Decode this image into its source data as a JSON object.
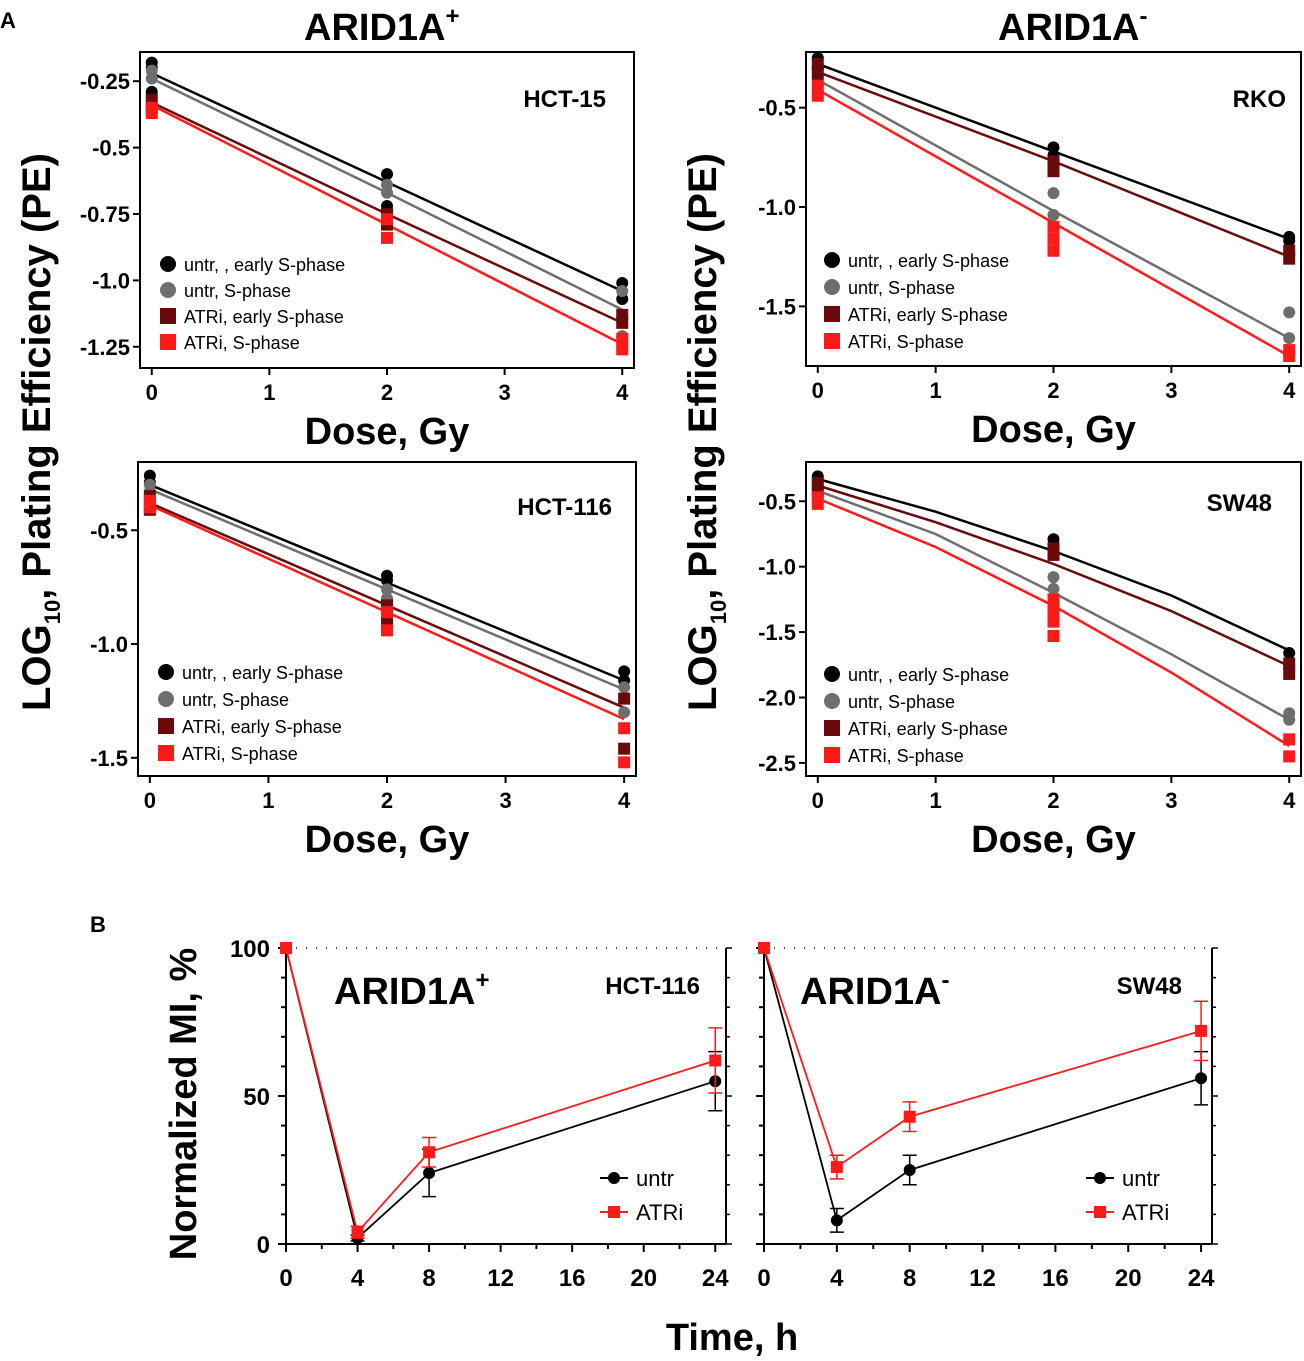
{
  "panel_labels": {
    "a": "A",
    "b": "B"
  },
  "headers": {
    "left": {
      "main": "ARID1A",
      "sup": "+"
    },
    "right": {
      "main": "ARID1A",
      "sup": "-"
    }
  },
  "shared": {
    "ylabel_pre": "LOG",
    "ylabel_sub": "10",
    "ylabel_post": ", Plating Efficiency (PE)",
    "b_ylabel": "Normalized MI, %",
    "b_xlabel": "Time, h"
  },
  "colors": {
    "untr_early": "#000000",
    "untr_s": "#6e6e6e",
    "atri_early": "#6b0a0a",
    "atri_s": "#ff1a1a",
    "ctrl_line": "#000000",
    "atri_line": "#ff1a1a"
  },
  "chart_data": [
    {
      "id": "hct15",
      "type": "scatter",
      "title": "HCT-15",
      "xlabel": "Dose, Gy",
      "ylabel": "LOG10, Plating Efficiency (PE)",
      "xlim": [
        -0.1,
        4.1
      ],
      "ylim": [
        -1.33,
        -0.14
      ],
      "xticks": [
        "0",
        "1",
        "2",
        "3",
        "4"
      ],
      "yticks": [
        {
          "v": -0.25,
          "t": "-0.25"
        },
        {
          "v": -0.5,
          "t": "-0.5"
        },
        {
          "v": -0.75,
          "t": "-0.75"
        },
        {
          "v": -1.0,
          "t": "-1.0"
        },
        {
          "v": -1.25,
          "t": "-1.25"
        }
      ],
      "series": [
        {
          "name": "untr, , early S-phase",
          "marker": "circle",
          "color": "#000000",
          "fit": [
            [
              0,
              -0.22
            ],
            [
              2,
              -0.63
            ],
            [
              4,
              -1.04
            ]
          ],
          "points": [
            [
              0,
              -0.18
            ],
            [
              0,
              -0.2
            ],
            [
              0,
              -0.29
            ],
            [
              2,
              -0.6
            ],
            [
              2,
              -0.72
            ],
            [
              4,
              -1.01
            ],
            [
              4,
              -1.07
            ]
          ]
        },
        {
          "name": "untr, S-phase",
          "marker": "circle",
          "color": "#6e6e6e",
          "fit": [
            [
              0,
              -0.24
            ],
            [
              2,
              -0.67
            ],
            [
              4,
              -1.11
            ]
          ],
          "points": [
            [
              0,
              -0.21
            ],
            [
              0,
              -0.24
            ],
            [
              2,
              -0.64
            ],
            [
              2,
              -0.67
            ],
            [
              4,
              -1.04
            ],
            [
              4,
              -1.21
            ]
          ]
        },
        {
          "name": "ATRi, early S-phase",
          "marker": "square",
          "color": "#6b0a0a",
          "fit": [
            [
              0,
              -0.33
            ],
            [
              2,
              -0.75
            ],
            [
              4,
              -1.16
            ]
          ],
          "points": [
            [
              0,
              -0.32
            ],
            [
              0,
              -0.35
            ],
            [
              2,
              -0.75
            ],
            [
              2,
              -0.79
            ],
            [
              4,
              -1.13
            ],
            [
              4,
              -1.16
            ]
          ]
        },
        {
          "name": "ATRi, S-phase",
          "marker": "square",
          "color": "#ff1a1a",
          "fit": [
            [
              0,
              -0.34
            ],
            [
              2,
              -0.79
            ],
            [
              4,
              -1.24
            ]
          ],
          "points": [
            [
              0,
              -0.35
            ],
            [
              0,
              -0.37
            ],
            [
              2,
              -0.77
            ],
            [
              2,
              -0.84
            ],
            [
              4,
              -1.22
            ],
            [
              4,
              -1.26
            ]
          ]
        }
      ]
    },
    {
      "id": "rko",
      "type": "scatter",
      "title": "RKO",
      "xlabel": "Dose, Gy",
      "ylabel": "LOG10, Plating Efficiency (PE)",
      "xlim": [
        -0.1,
        4.1
      ],
      "ylim": [
        -1.8,
        -0.22
      ],
      "xticks": [
        "0",
        "1",
        "2",
        "3",
        "4"
      ],
      "yticks": [
        {
          "v": -0.5,
          "t": "-0.5"
        },
        {
          "v": -1.0,
          "t": "-1.0"
        },
        {
          "v": -1.5,
          "t": "-1.5"
        }
      ],
      "series": [
        {
          "name": "untr, , early S-phase",
          "marker": "circle",
          "color": "#000000",
          "fit": [
            [
              0,
              -0.28
            ],
            [
              2,
              -0.72
            ],
            [
              4,
              -1.16
            ]
          ],
          "points": [
            [
              0,
              -0.25
            ],
            [
              0,
              -0.3
            ],
            [
              2,
              -0.7
            ],
            [
              2,
              -0.74
            ],
            [
              4,
              -1.15
            ],
            [
              4,
              -1.17
            ]
          ]
        },
        {
          "name": "untr, S-phase",
          "marker": "circle",
          "color": "#6e6e6e",
          "fit": [
            [
              0,
              -0.36
            ],
            [
              2,
              -1.02
            ],
            [
              4,
              -1.66
            ]
          ],
          "points": [
            [
              0,
              -0.38
            ],
            [
              2,
              -0.93
            ],
            [
              2,
              -1.04
            ],
            [
              4,
              -1.53
            ],
            [
              4,
              -1.66
            ]
          ]
        },
        {
          "name": "ATRi, early S-phase",
          "marker": "square",
          "color": "#6b0a0a",
          "fit": [
            [
              0,
              -0.32
            ],
            [
              2,
              -0.77
            ],
            [
              4,
              -1.25
            ]
          ],
          "points": [
            [
              0,
              -0.28
            ],
            [
              0,
              -0.33
            ],
            [
              2,
              -0.77
            ],
            [
              2,
              -0.82
            ],
            [
              4,
              -1.22
            ],
            [
              4,
              -1.26
            ]
          ]
        },
        {
          "name": "ATRi, S-phase",
          "marker": "square",
          "color": "#ff1a1a",
          "fit": [
            [
              0,
              -0.41
            ],
            [
              2,
              -1.08
            ],
            [
              4,
              -1.75
            ]
          ],
          "points": [
            [
              0,
              -0.39
            ],
            [
              0,
              -0.44
            ],
            [
              2,
              -1.1
            ],
            [
              2,
              -1.16
            ],
            [
              2,
              -1.22
            ],
            [
              4,
              -1.72
            ],
            [
              4,
              -1.75
            ]
          ]
        }
      ]
    },
    {
      "id": "hct116",
      "type": "scatter",
      "title": "HCT-116",
      "xlabel": "Dose, Gy",
      "ylabel": "LOG10, Plating Efficiency (PE)",
      "xlim": [
        -0.1,
        4.1
      ],
      "ylim": [
        -1.58,
        -0.2
      ],
      "xticks": [
        "0",
        "1",
        "2",
        "3",
        "4"
      ],
      "yticks": [
        {
          "v": -0.5,
          "t": "-0.5"
        },
        {
          "v": -1.0,
          "t": "-1.0"
        },
        {
          "v": -1.5,
          "t": "-1.5"
        }
      ],
      "series": [
        {
          "name": "untr, , early S-phase",
          "marker": "circle",
          "color": "#000000",
          "fit": [
            [
              0,
              -0.3
            ],
            [
              2,
              -0.73
            ],
            [
              4,
              -1.16
            ]
          ],
          "points": [
            [
              0,
              -0.26
            ],
            [
              0,
              -0.29
            ],
            [
              2,
              -0.7
            ],
            [
              2,
              -0.72
            ],
            [
              4,
              -1.12
            ],
            [
              4,
              -1.16
            ]
          ]
        },
        {
          "name": "untr, S-phase",
          "marker": "circle",
          "color": "#6e6e6e",
          "fit": [
            [
              0,
              -0.32
            ],
            [
              2,
              -0.76
            ],
            [
              4,
              -1.2
            ]
          ],
          "points": [
            [
              0,
              -0.3
            ],
            [
              0,
              -0.33
            ],
            [
              2,
              -0.76
            ],
            [
              2,
              -0.8
            ],
            [
              4,
              -1.19
            ],
            [
              4,
              -1.3
            ]
          ]
        },
        {
          "name": "ATRi, early S-phase",
          "marker": "square",
          "color": "#6b0a0a",
          "fit": [
            [
              0,
              -0.38
            ],
            [
              2,
              -0.83
            ],
            [
              4,
              -1.28
            ]
          ],
          "points": [
            [
              0,
              -0.35
            ],
            [
              0,
              -0.41
            ],
            [
              2,
              -0.83
            ],
            [
              2,
              -0.91
            ],
            [
              4,
              -1.24
            ],
            [
              4,
              -1.46
            ]
          ]
        },
        {
          "name": "ATRi, S-phase",
          "marker": "square",
          "color": "#ff1a1a",
          "fit": [
            [
              0,
              -0.39
            ],
            [
              2,
              -0.86
            ],
            [
              4,
              -1.33
            ]
          ],
          "points": [
            [
              0,
              -0.37
            ],
            [
              0,
              -0.4
            ],
            [
              2,
              -0.86
            ],
            [
              2,
              -0.94
            ],
            [
              4,
              -1.37
            ],
            [
              4,
              -1.52
            ]
          ]
        }
      ]
    },
    {
      "id": "sw48",
      "type": "scatter",
      "title": "SW48",
      "xlabel": "Dose, Gy",
      "ylabel": "LOG10, Plating Efficiency (PE)",
      "xlim": [
        -0.1,
        4.1
      ],
      "ylim": [
        -2.6,
        -0.2
      ],
      "xticks": [
        "0",
        "1",
        "2",
        "3",
        "4"
      ],
      "yticks": [
        {
          "v": -0.5,
          "t": "-0.5"
        },
        {
          "v": -1.0,
          "t": "-1.0"
        },
        {
          "v": -1.5,
          "t": "-1.5"
        },
        {
          "v": -2.0,
          "t": "-2.0"
        },
        {
          "v": -2.5,
          "t": "-2.5"
        }
      ],
      "series": [
        {
          "name": "untr, , early S-phase",
          "marker": "circle",
          "color": "#000000",
          "fit": [
            [
              0,
              -0.33
            ],
            [
              1,
              -0.58
            ],
            [
              2,
              -0.88
            ],
            [
              3,
              -1.22
            ],
            [
              4,
              -1.64
            ]
          ],
          "points": [
            [
              0,
              -0.31
            ],
            [
              0,
              -0.35
            ],
            [
              2,
              -0.79
            ],
            [
              2,
              -0.86
            ],
            [
              4,
              -1.66
            ],
            [
              4,
              -1.75
            ]
          ]
        },
        {
          "name": "untr, S-phase",
          "marker": "circle",
          "color": "#6e6e6e",
          "fit": [
            [
              0,
              -0.42
            ],
            [
              1,
              -0.75
            ],
            [
              2,
              -1.2
            ],
            [
              3,
              -1.67
            ],
            [
              4,
              -2.17
            ]
          ],
          "points": [
            [
              0,
              -0.4
            ],
            [
              0,
              -0.43
            ],
            [
              2,
              -1.08
            ],
            [
              2,
              -1.17
            ],
            [
              4,
              -2.12
            ],
            [
              4,
              -2.17
            ]
          ]
        },
        {
          "name": "ATRi, early S-phase",
          "marker": "square",
          "color": "#6b0a0a",
          "fit": [
            [
              0,
              -0.38
            ],
            [
              1,
              -0.66
            ],
            [
              2,
              -0.98
            ],
            [
              3,
              -1.34
            ],
            [
              4,
              -1.76
            ]
          ],
          "points": [
            [
              0,
              -0.36
            ],
            [
              0,
              -0.42
            ],
            [
              2,
              -0.86
            ],
            [
              2,
              -0.91
            ],
            [
              4,
              -1.74
            ],
            [
              4,
              -1.82
            ]
          ]
        },
        {
          "name": "ATRi, S-phase",
          "marker": "square",
          "color": "#ff1a1a",
          "fit": [
            [
              0,
              -0.48
            ],
            [
              1,
              -0.85
            ],
            [
              2,
              -1.3
            ],
            [
              3,
              -1.81
            ],
            [
              4,
              -2.37
            ]
          ],
          "points": [
            [
              0,
              -0.47
            ],
            [
              0,
              -0.52
            ],
            [
              2,
              -1.25
            ],
            [
              2,
              -1.33
            ],
            [
              2,
              -1.42
            ],
            [
              2,
              -1.53
            ],
            [
              4,
              -2.32
            ],
            [
              4,
              -2.45
            ]
          ]
        }
      ]
    },
    {
      "id": "mi_hct116",
      "type": "line",
      "cell": "HCT-116",
      "label": {
        "main": "ARID1A",
        "sup": "+"
      },
      "xlim": [
        0,
        24.6
      ],
      "ylim": [
        0,
        100
      ],
      "xticks": [
        "0",
        "4",
        "8",
        "12",
        "16",
        "20",
        "24"
      ],
      "yticks": [
        {
          "v": 0,
          "t": "0"
        },
        {
          "v": 50,
          "t": "50"
        },
        {
          "v": 100,
          "t": "100"
        }
      ],
      "series": [
        {
          "name": "untr",
          "marker": "circle",
          "color": "#000000",
          "x": [
            0,
            4,
            8,
            24
          ],
          "y": [
            100,
            2,
            24,
            55
          ],
          "err": [
            0,
            1,
            8,
            10
          ]
        },
        {
          "name": "ATRi",
          "marker": "square",
          "color": "#ff1a1a",
          "x": [
            0,
            4,
            8,
            24
          ],
          "y": [
            100,
            4,
            31,
            62
          ],
          "err": [
            0,
            2,
            5,
            11
          ]
        }
      ]
    },
    {
      "id": "mi_sw48",
      "type": "line",
      "cell": "SW48",
      "label": {
        "main": "ARID1A",
        "sup": "-"
      },
      "xlim": [
        0,
        24.6
      ],
      "ylim": [
        0,
        100
      ],
      "xticks": [
        "0",
        "4",
        "8",
        "12",
        "16",
        "20",
        "24"
      ],
      "yticks": [],
      "series": [
        {
          "name": "untr",
          "marker": "circle",
          "color": "#000000",
          "x": [
            0,
            4,
            8,
            24
          ],
          "y": [
            100,
            8,
            25,
            56
          ],
          "err": [
            0,
            4,
            5,
            9
          ]
        },
        {
          "name": "ATRi",
          "marker": "square",
          "color": "#ff1a1a",
          "x": [
            0,
            4,
            8,
            24
          ],
          "y": [
            100,
            26,
            43,
            72
          ],
          "err": [
            0,
            4,
            5,
            10
          ]
        }
      ]
    }
  ]
}
